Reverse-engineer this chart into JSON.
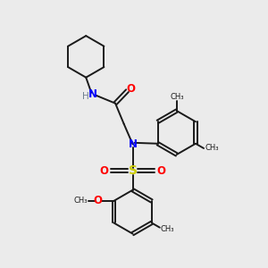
{
  "background_color": "#ebebeb",
  "bond_color": "#1a1a1a",
  "N_color": "#0000ff",
  "O_color": "#ff0000",
  "S_color": "#cccc00",
  "H_color": "#708090",
  "C_color": "#1a1a1a",
  "figsize": [
    3.0,
    3.0
  ],
  "dpi": 100,
  "xlim": [
    0,
    10
  ],
  "ylim": [
    0,
    10
  ],
  "lw": 1.4
}
